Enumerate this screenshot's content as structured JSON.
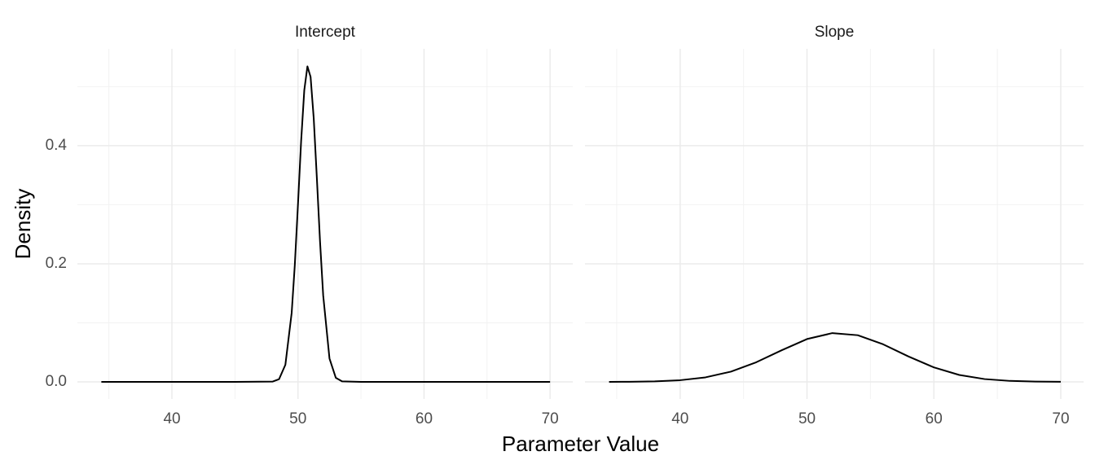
{
  "chart_data": [
    {
      "type": "line",
      "title": "Intercept",
      "ylabel": "Density",
      "xlabel": "Parameter Value",
      "x": [
        34.4,
        40,
        45,
        48,
        48.5,
        49,
        49.5,
        49.75,
        50,
        50.25,
        50.5,
        50.75,
        51,
        51.25,
        51.5,
        51.75,
        52,
        52.5,
        53,
        53.5,
        55,
        60,
        65,
        70
      ],
      "values": [
        0,
        0,
        0,
        0.0005,
        0.0046,
        0.0289,
        0.1169,
        0.1984,
        0.3008,
        0.4077,
        0.4938,
        0.5343,
        0.5165,
        0.4462,
        0.3443,
        0.2375,
        0.1464,
        0.0396,
        0.0069,
        0.0008,
        0,
        0,
        0,
        0
      ],
      "color": "#000000",
      "xlim": [
        32.5,
        71.8
      ],
      "xticks": [
        40,
        50,
        60,
        70
      ],
      "xticks_minor": [
        35,
        45,
        55,
        65
      ],
      "ylim": [
        -0.029,
        0.564
      ],
      "yticks": [
        {
          "value": 0,
          "label": "0.0"
        },
        0.2,
        0.4
      ],
      "yticks_minor": [
        0.1,
        0.3,
        0.5
      ],
      "grid": true
    },
    {
      "type": "line",
      "title": "Slope",
      "x": [
        34.4,
        36,
        38,
        40,
        42,
        44,
        46,
        48,
        50,
        52,
        54,
        56,
        58,
        60,
        62,
        64,
        66,
        68,
        70
      ],
      "values": [
        0,
        0.0002,
        0.0009,
        0.0028,
        0.0076,
        0.0173,
        0.0332,
        0.0535,
        0.0725,
        0.0826,
        0.079,
        0.0636,
        0.043,
        0.0245,
        0.0117,
        0.0047,
        0.0016,
        0.0005,
        0.0001
      ],
      "color": "#000000",
      "xlim": [
        32.5,
        71.8
      ],
      "xticks": [
        40,
        50,
        60,
        70
      ],
      "xticks_minor": [
        35,
        45,
        55,
        65
      ],
      "ylim": [
        -0.029,
        0.564
      ],
      "yticks": [
        {
          "value": 0,
          "label": "0.0"
        },
        0.2,
        0.4
      ],
      "yticks_minor": [
        0.1,
        0.3,
        0.5
      ],
      "grid": true
    }
  ]
}
